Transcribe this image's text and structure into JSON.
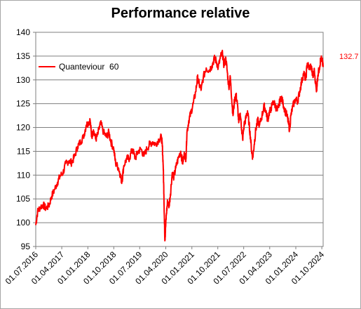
{
  "chart_data": {
    "type": "line",
    "title": "Performance relative",
    "xlabel": "",
    "ylabel": "",
    "ylim": [
      95,
      140
    ],
    "yticks": [
      95,
      100,
      105,
      110,
      115,
      120,
      125,
      130,
      135,
      140
    ],
    "x_range": [
      "2016-07-01",
      "2024-10-15"
    ],
    "xticks": [
      "01.07.2016",
      "01.04.2017",
      "01.01.2018",
      "01.10.2018",
      "01.07.2019",
      "01.04.2020",
      "01.01.2021",
      "01.10.2021",
      "01.07.2022",
      "01.04.2023",
      "01.01.2024",
      "01.10.2024"
    ],
    "grid": true,
    "legend_position": "top-left",
    "last_value_label": "132.7",
    "series": [
      {
        "name": "Quanteviour  60",
        "color": "#ff0000",
        "points": [
          [
            "2016-07-01",
            99.5
          ],
          [
            "2016-07-20",
            102.3
          ],
          [
            "2016-08-15",
            103.2
          ],
          [
            "2016-09-15",
            103.8
          ],
          [
            "2016-10-15",
            103.0
          ],
          [
            "2016-11-15",
            103.5
          ],
          [
            "2016-12-15",
            105.5
          ],
          [
            "2017-01-15",
            107.0
          ],
          [
            "2017-02-15",
            108.5
          ],
          [
            "2017-03-15",
            109.8
          ],
          [
            "2017-04-15",
            110.5
          ],
          [
            "2017-05-15",
            112.5
          ],
          [
            "2017-06-15",
            113.0
          ],
          [
            "2017-07-15",
            112.6
          ],
          [
            "2017-08-15",
            114.0
          ],
          [
            "2017-09-15",
            116.0
          ],
          [
            "2017-10-15",
            117.0
          ],
          [
            "2017-11-15",
            118.0
          ],
          [
            "2017-12-15",
            120.5
          ],
          [
            "2018-01-05",
            121.0
          ],
          [
            "2018-01-25",
            121.5
          ],
          [
            "2018-02-10",
            118.0
          ],
          [
            "2018-03-01",
            119.5
          ],
          [
            "2018-03-25",
            117.5
          ],
          [
            "2018-04-15",
            118.5
          ],
          [
            "2018-05-15",
            121.0
          ],
          [
            "2018-06-15",
            119.0
          ],
          [
            "2018-07-15",
            118.0
          ],
          [
            "2018-08-10",
            119.0
          ],
          [
            "2018-09-01",
            117.0
          ],
          [
            "2018-10-01",
            115.5
          ],
          [
            "2018-10-20",
            112.5
          ],
          [
            "2018-11-20",
            111.5
          ],
          [
            "2018-12-10",
            110.0
          ],
          [
            "2018-12-25",
            108.5
          ],
          [
            "2019-01-15",
            112.0
          ],
          [
            "2019-02-15",
            113.5
          ],
          [
            "2019-03-15",
            113.5
          ],
          [
            "2019-04-15",
            115.5
          ],
          [
            "2019-05-15",
            113.5
          ],
          [
            "2019-06-15",
            115.0
          ],
          [
            "2019-07-15",
            115.5
          ],
          [
            "2019-08-15",
            114.0
          ],
          [
            "2019-09-15",
            115.5
          ],
          [
            "2019-10-15",
            116.5
          ],
          [
            "2019-11-15",
            117.0
          ],
          [
            "2019-12-15",
            116.5
          ],
          [
            "2020-01-20",
            117.5
          ],
          [
            "2020-02-15",
            118.0
          ],
          [
            "2020-02-25",
            116.0
          ],
          [
            "2020-03-05",
            112.0
          ],
          [
            "2020-03-12",
            106.0
          ],
          [
            "2020-03-18",
            100.0
          ],
          [
            "2020-03-23",
            96.3
          ],
          [
            "2020-03-30",
            99.0
          ],
          [
            "2020-04-08",
            102.0
          ],
          [
            "2020-04-20",
            104.5
          ],
          [
            "2020-05-05",
            103.5
          ],
          [
            "2020-05-20",
            106.0
          ],
          [
            "2020-06-08",
            110.5
          ],
          [
            "2020-06-25",
            109.5
          ],
          [
            "2020-07-15",
            111.5
          ],
          [
            "2020-08-10",
            113.5
          ],
          [
            "2020-09-05",
            115.0
          ],
          [
            "2020-09-25",
            112.5
          ],
          [
            "2020-10-15",
            114.5
          ],
          [
            "2020-10-30",
            113.5
          ],
          [
            "2020-11-10",
            119.0
          ],
          [
            "2020-11-30",
            121.5
          ],
          [
            "2020-12-20",
            123.0
          ],
          [
            "2021-01-15",
            125.0
          ],
          [
            "2021-02-10",
            127.5
          ],
          [
            "2021-03-01",
            130.5
          ],
          [
            "2021-03-20",
            129.0
          ],
          [
            "2021-04-10",
            128.0
          ],
          [
            "2021-05-01",
            130.5
          ],
          [
            "2021-06-01",
            132.5
          ],
          [
            "2021-07-01",
            132.0
          ],
          [
            "2021-08-01",
            133.0
          ],
          [
            "2021-08-25",
            134.5
          ],
          [
            "2021-09-15",
            134.0
          ],
          [
            "2021-10-05",
            132.5
          ],
          [
            "2021-11-01",
            135.0
          ],
          [
            "2021-11-20",
            135.5
          ],
          [
            "2021-12-05",
            133.0
          ],
          [
            "2021-12-25",
            134.5
          ],
          [
            "2022-01-10",
            131.5
          ],
          [
            "2022-01-25",
            128.5
          ],
          [
            "2022-02-10",
            130.5
          ],
          [
            "2022-02-25",
            126.0
          ],
          [
            "2022-03-10",
            122.5
          ],
          [
            "2022-03-25",
            125.5
          ],
          [
            "2022-04-10",
            127.0
          ],
          [
            "2022-04-25",
            125.0
          ],
          [
            "2022-05-10",
            121.0
          ],
          [
            "2022-05-25",
            123.0
          ],
          [
            "2022-06-10",
            119.5
          ],
          [
            "2022-06-20",
            117.5
          ],
          [
            "2022-07-05",
            120.5
          ],
          [
            "2022-07-25",
            122.0
          ],
          [
            "2022-08-10",
            123.5
          ],
          [
            "2022-08-25",
            121.0
          ],
          [
            "2022-09-10",
            118.0
          ],
          [
            "2022-09-25",
            114.5
          ],
          [
            "2022-10-05",
            113.8
          ],
          [
            "2022-10-20",
            116.5
          ],
          [
            "2022-11-05",
            119.5
          ],
          [
            "2022-11-25",
            121.5
          ],
          [
            "2022-12-15",
            120.5
          ],
          [
            "2023-01-10",
            122.5
          ],
          [
            "2023-02-01",
            124.5
          ],
          [
            "2023-02-20",
            123.5
          ],
          [
            "2023-03-10",
            121.5
          ],
          [
            "2023-03-25",
            123.0
          ],
          [
            "2023-04-15",
            124.0
          ],
          [
            "2023-05-10",
            125.5
          ],
          [
            "2023-06-01",
            124.5
          ],
          [
            "2023-06-20",
            123.5
          ],
          [
            "2023-07-10",
            125.0
          ],
          [
            "2023-07-31",
            126.5
          ],
          [
            "2023-08-20",
            125.0
          ],
          [
            "2023-09-10",
            123.5
          ],
          [
            "2023-09-30",
            122.5
          ],
          [
            "2023-10-15",
            121.0
          ],
          [
            "2023-10-27",
            119.5
          ],
          [
            "2023-11-10",
            122.5
          ],
          [
            "2023-12-01",
            124.5
          ],
          [
            "2023-12-28",
            126.0
          ],
          [
            "2024-01-20",
            125.5
          ],
          [
            "2024-02-10",
            127.5
          ],
          [
            "2024-03-01",
            129.5
          ],
          [
            "2024-03-25",
            131.5
          ],
          [
            "2024-04-15",
            130.0
          ],
          [
            "2024-04-30",
            133.5
          ],
          [
            "2024-05-20",
            132.5
          ],
          [
            "2024-06-10",
            133.0
          ],
          [
            "2024-06-30",
            130.5
          ],
          [
            "2024-07-15",
            132.0
          ],
          [
            "2024-08-05",
            127.5
          ],
          [
            "2024-08-20",
            131.0
          ],
          [
            "2024-09-05",
            132.5
          ],
          [
            "2024-09-20",
            134.5
          ],
          [
            "2024-10-05",
            134.0
          ],
          [
            "2024-10-15",
            132.7
          ]
        ]
      }
    ]
  }
}
